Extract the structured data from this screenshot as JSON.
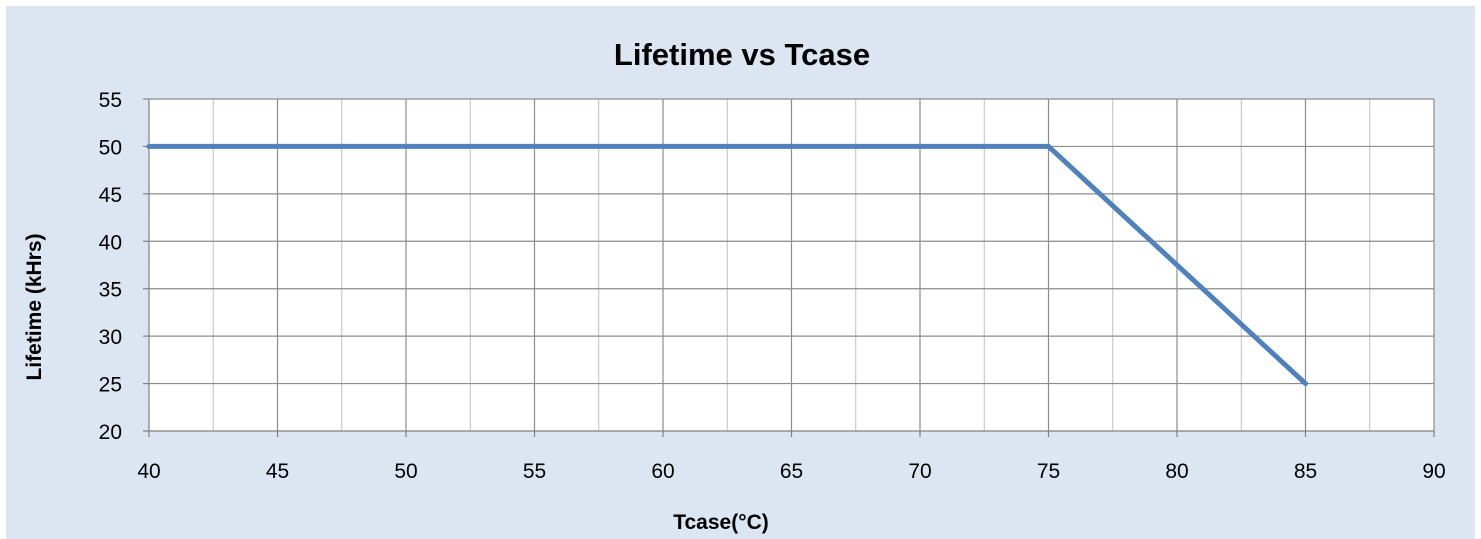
{
  "chart_data": {
    "type": "line",
    "title": "Lifetime vs Tcase",
    "xlabel": "Tcase(°C)",
    "ylabel": "Lifetime (kHrs)",
    "xlim": [
      40,
      90
    ],
    "ylim": [
      20,
      55
    ],
    "x_ticks": [
      40,
      45,
      50,
      55,
      60,
      65,
      70,
      75,
      80,
      85,
      90
    ],
    "y_ticks": [
      20,
      25,
      30,
      35,
      40,
      45,
      50,
      55
    ],
    "x_minor_step": 2.5,
    "grid": true,
    "legend": "none",
    "series": [
      {
        "color": "#4f81bd",
        "points": [
          [
            40,
            50
          ],
          [
            75,
            50
          ],
          [
            85,
            25
          ]
        ]
      }
    ]
  }
}
